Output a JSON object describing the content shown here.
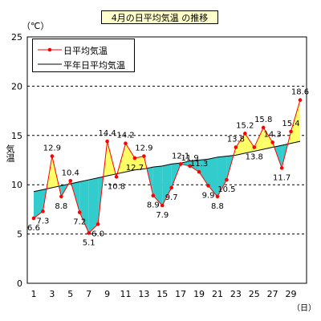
{
  "chart_data": {
    "type": "line",
    "title": "4月の日平均気温 の推移",
    "unit_label": "（℃）",
    "ylabel": "気温",
    "xunit": "（日）",
    "ylim": [
      0,
      25
    ],
    "yticks": [
      0,
      5,
      10,
      15,
      20,
      25
    ],
    "xticks": [
      1,
      3,
      5,
      7,
      9,
      11,
      13,
      15,
      17,
      19,
      21,
      23,
      25,
      27,
      29
    ],
    "x": [
      1,
      2,
      3,
      4,
      5,
      6,
      7,
      8,
      9,
      10,
      11,
      12,
      13,
      14,
      15,
      16,
      17,
      18,
      19,
      20,
      21,
      22,
      23,
      24,
      25,
      26,
      27,
      28,
      29,
      30
    ],
    "series": [
      {
        "name": "日平均気温",
        "values": [
          6.6,
          7.3,
          12.9,
          8.8,
          10.4,
          7.2,
          5.1,
          6.0,
          14.4,
          10.8,
          14.2,
          12.7,
          12.9,
          8.9,
          7.9,
          9.7,
          12.1,
          11.9,
          11.3,
          9.9,
          8.8,
          10.5,
          13.8,
          15.2,
          13.8,
          15.8,
          14.3,
          11.7,
          15.4,
          18.6
        ],
        "color": "#ff0000"
      },
      {
        "name": "平年日平均気温",
        "values": [
          9.3,
          9.5,
          9.7,
          9.9,
          10.1,
          10.3,
          10.5,
          10.7,
          10.9,
          11.1,
          11.3,
          11.5,
          11.6,
          11.8,
          11.9,
          12.1,
          12.2,
          12.4,
          12.5,
          12.6,
          12.8,
          12.9,
          13.0,
          13.2,
          13.4,
          13.6,
          13.8,
          14.0,
          14.2,
          14.4
        ],
        "color": "#000000"
      }
    ],
    "labels": [
      "6.6",
      "7.3",
      "12.9",
      "8.8",
      "10.4",
      "7.2",
      "5.1",
      "6.0",
      "14.4",
      "10.8",
      "14.2",
      "12.7",
      "12.9",
      "8.9",
      "7.9",
      "9.7",
      "12.1",
      "11.9",
      "11.3",
      "9.9",
      "8.8",
      "10.5",
      "13.8",
      "15.2",
      "13.8",
      "15.8",
      "14.3",
      "11.7",
      "15.4",
      "18.6"
    ],
    "above_color": "#ffff66",
    "below_color": "#33cccc",
    "grid": true,
    "legend": "top-left"
  }
}
